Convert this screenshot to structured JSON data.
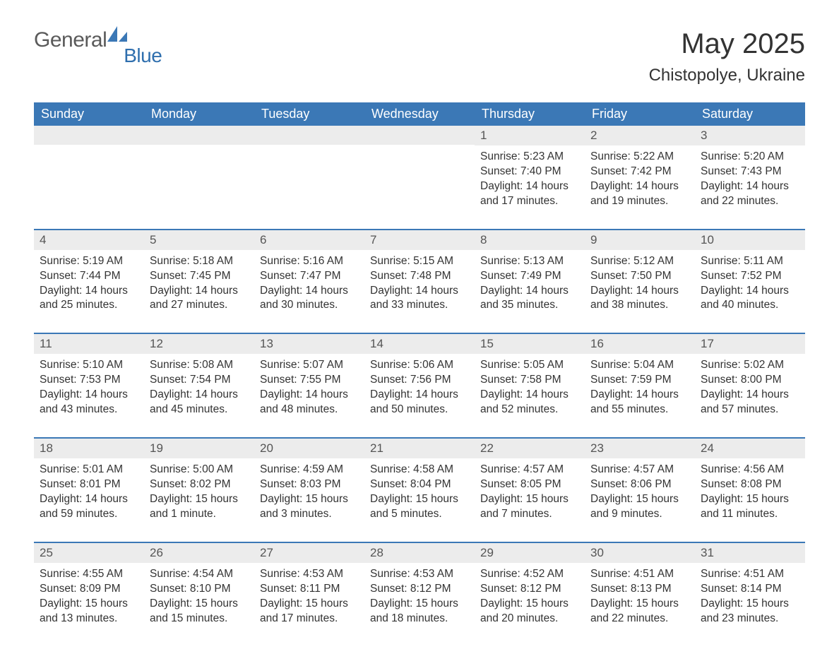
{
  "logo": {
    "word1": "General",
    "word2": "Blue",
    "icon_color": "#3b78b6"
  },
  "title": {
    "month_year": "May 2025",
    "location": "Chistopolye, Ukraine"
  },
  "colors": {
    "header_bg": "#3b78b6",
    "header_text": "#ffffff",
    "day_number_bg": "#ececec",
    "body_text": "#333333",
    "logo_gray": "#5a5a5a",
    "logo_blue": "#2f6fae"
  },
  "weekdays": [
    "Sunday",
    "Monday",
    "Tuesday",
    "Wednesday",
    "Thursday",
    "Friday",
    "Saturday"
  ],
  "weeks": [
    [
      {
        "day": ""
      },
      {
        "day": ""
      },
      {
        "day": ""
      },
      {
        "day": ""
      },
      {
        "day": "1",
        "sunrise": "Sunrise: 5:23 AM",
        "sunset": "Sunset: 7:40 PM",
        "daylight": "Daylight: 14 hours and 17 minutes."
      },
      {
        "day": "2",
        "sunrise": "Sunrise: 5:22 AM",
        "sunset": "Sunset: 7:42 PM",
        "daylight": "Daylight: 14 hours and 19 minutes."
      },
      {
        "day": "3",
        "sunrise": "Sunrise: 5:20 AM",
        "sunset": "Sunset: 7:43 PM",
        "daylight": "Daylight: 14 hours and 22 minutes."
      }
    ],
    [
      {
        "day": "4",
        "sunrise": "Sunrise: 5:19 AM",
        "sunset": "Sunset: 7:44 PM",
        "daylight": "Daylight: 14 hours and 25 minutes."
      },
      {
        "day": "5",
        "sunrise": "Sunrise: 5:18 AM",
        "sunset": "Sunset: 7:45 PM",
        "daylight": "Daylight: 14 hours and 27 minutes."
      },
      {
        "day": "6",
        "sunrise": "Sunrise: 5:16 AM",
        "sunset": "Sunset: 7:47 PM",
        "daylight": "Daylight: 14 hours and 30 minutes."
      },
      {
        "day": "7",
        "sunrise": "Sunrise: 5:15 AM",
        "sunset": "Sunset: 7:48 PM",
        "daylight": "Daylight: 14 hours and 33 minutes."
      },
      {
        "day": "8",
        "sunrise": "Sunrise: 5:13 AM",
        "sunset": "Sunset: 7:49 PM",
        "daylight": "Daylight: 14 hours and 35 minutes."
      },
      {
        "day": "9",
        "sunrise": "Sunrise: 5:12 AM",
        "sunset": "Sunset: 7:50 PM",
        "daylight": "Daylight: 14 hours and 38 minutes."
      },
      {
        "day": "10",
        "sunrise": "Sunrise: 5:11 AM",
        "sunset": "Sunset: 7:52 PM",
        "daylight": "Daylight: 14 hours and 40 minutes."
      }
    ],
    [
      {
        "day": "11",
        "sunrise": "Sunrise: 5:10 AM",
        "sunset": "Sunset: 7:53 PM",
        "daylight": "Daylight: 14 hours and 43 minutes."
      },
      {
        "day": "12",
        "sunrise": "Sunrise: 5:08 AM",
        "sunset": "Sunset: 7:54 PM",
        "daylight": "Daylight: 14 hours and 45 minutes."
      },
      {
        "day": "13",
        "sunrise": "Sunrise: 5:07 AM",
        "sunset": "Sunset: 7:55 PM",
        "daylight": "Daylight: 14 hours and 48 minutes."
      },
      {
        "day": "14",
        "sunrise": "Sunrise: 5:06 AM",
        "sunset": "Sunset: 7:56 PM",
        "daylight": "Daylight: 14 hours and 50 minutes."
      },
      {
        "day": "15",
        "sunrise": "Sunrise: 5:05 AM",
        "sunset": "Sunset: 7:58 PM",
        "daylight": "Daylight: 14 hours and 52 minutes."
      },
      {
        "day": "16",
        "sunrise": "Sunrise: 5:04 AM",
        "sunset": "Sunset: 7:59 PM",
        "daylight": "Daylight: 14 hours and 55 minutes."
      },
      {
        "day": "17",
        "sunrise": "Sunrise: 5:02 AM",
        "sunset": "Sunset: 8:00 PM",
        "daylight": "Daylight: 14 hours and 57 minutes."
      }
    ],
    [
      {
        "day": "18",
        "sunrise": "Sunrise: 5:01 AM",
        "sunset": "Sunset: 8:01 PM",
        "daylight": "Daylight: 14 hours and 59 minutes."
      },
      {
        "day": "19",
        "sunrise": "Sunrise: 5:00 AM",
        "sunset": "Sunset: 8:02 PM",
        "daylight": "Daylight: 15 hours and 1 minute."
      },
      {
        "day": "20",
        "sunrise": "Sunrise: 4:59 AM",
        "sunset": "Sunset: 8:03 PM",
        "daylight": "Daylight: 15 hours and 3 minutes."
      },
      {
        "day": "21",
        "sunrise": "Sunrise: 4:58 AM",
        "sunset": "Sunset: 8:04 PM",
        "daylight": "Daylight: 15 hours and 5 minutes."
      },
      {
        "day": "22",
        "sunrise": "Sunrise: 4:57 AM",
        "sunset": "Sunset: 8:05 PM",
        "daylight": "Daylight: 15 hours and 7 minutes."
      },
      {
        "day": "23",
        "sunrise": "Sunrise: 4:57 AM",
        "sunset": "Sunset: 8:06 PM",
        "daylight": "Daylight: 15 hours and 9 minutes."
      },
      {
        "day": "24",
        "sunrise": "Sunrise: 4:56 AM",
        "sunset": "Sunset: 8:08 PM",
        "daylight": "Daylight: 15 hours and 11 minutes."
      }
    ],
    [
      {
        "day": "25",
        "sunrise": "Sunrise: 4:55 AM",
        "sunset": "Sunset: 8:09 PM",
        "daylight": "Daylight: 15 hours and 13 minutes."
      },
      {
        "day": "26",
        "sunrise": "Sunrise: 4:54 AM",
        "sunset": "Sunset: 8:10 PM",
        "daylight": "Daylight: 15 hours and 15 minutes."
      },
      {
        "day": "27",
        "sunrise": "Sunrise: 4:53 AM",
        "sunset": "Sunset: 8:11 PM",
        "daylight": "Daylight: 15 hours and 17 minutes."
      },
      {
        "day": "28",
        "sunrise": "Sunrise: 4:53 AM",
        "sunset": "Sunset: 8:12 PM",
        "daylight": "Daylight: 15 hours and 18 minutes."
      },
      {
        "day": "29",
        "sunrise": "Sunrise: 4:52 AM",
        "sunset": "Sunset: 8:12 PM",
        "daylight": "Daylight: 15 hours and 20 minutes."
      },
      {
        "day": "30",
        "sunrise": "Sunrise: 4:51 AM",
        "sunset": "Sunset: 8:13 PM",
        "daylight": "Daylight: 15 hours and 22 minutes."
      },
      {
        "day": "31",
        "sunrise": "Sunrise: 4:51 AM",
        "sunset": "Sunset: 8:14 PM",
        "daylight": "Daylight: 15 hours and 23 minutes."
      }
    ]
  ]
}
